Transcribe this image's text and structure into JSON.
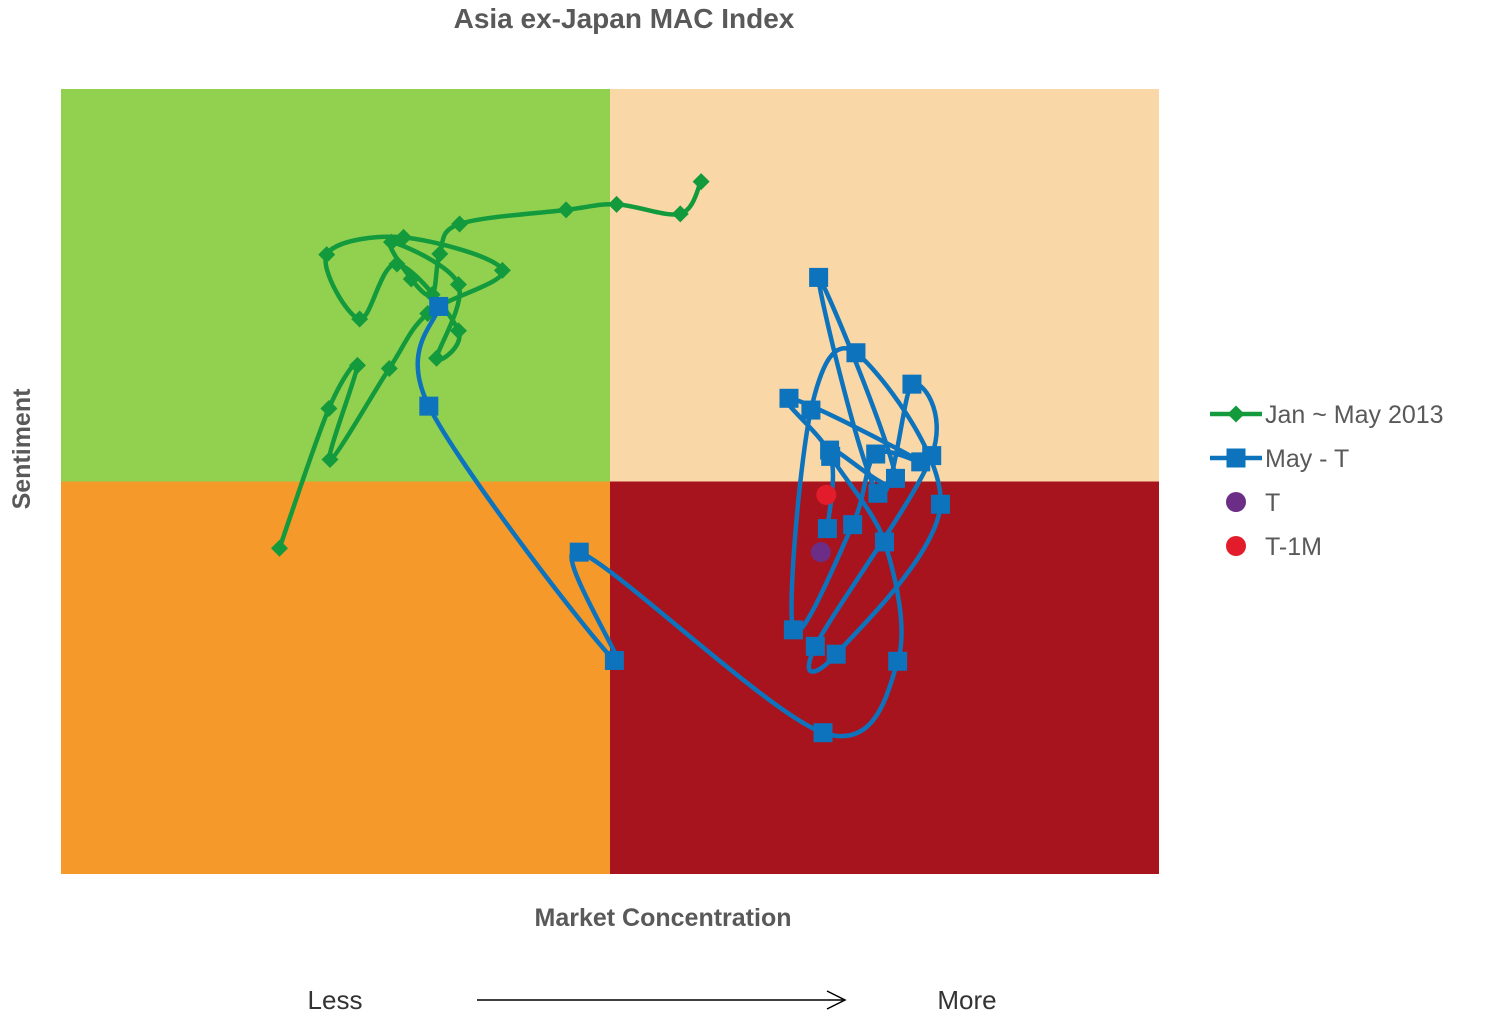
{
  "chart_data": {
    "type": "scatter",
    "title": "Asia ex-Japan MAC Index",
    "xlabel": "Market Concentration",
    "ylabel": "Sentiment",
    "xlim": [
      0,
      100
    ],
    "ylim": [
      0,
      100
    ],
    "grid": false,
    "quadrant_split": {
      "x": 50,
      "y": 50
    },
    "quadrant_colors": {
      "top_left": "#92d050",
      "top_right": "#fad7a6",
      "bottom_left": "#f59a2a",
      "bottom_right": "#a8141d"
    },
    "legend_position": "right",
    "direction_axis": {
      "left_label": "Less",
      "right_label": "More"
    },
    "series": [
      {
        "name": "Jan ~ May 2013",
        "color": "#129a3d",
        "marker": "diamond",
        "smooth": true,
        "points": [
          [
            58.3,
            88.2
          ],
          [
            56.4,
            84.1
          ],
          [
            50.6,
            85.3
          ],
          [
            46.0,
            84.6
          ],
          [
            36.3,
            82.8
          ],
          [
            34.5,
            79.0
          ],
          [
            33.8,
            73.8
          ],
          [
            31.9,
            75.8
          ],
          [
            30.1,
            80.5
          ],
          [
            36.2,
            75.1
          ],
          [
            34.2,
            65.7
          ],
          [
            36.2,
            69.2
          ],
          [
            30.6,
            77.7
          ],
          [
            27.2,
            70.7
          ],
          [
            24.2,
            78.9
          ],
          [
            31.2,
            81.1
          ],
          [
            40.2,
            76.9
          ],
          [
            33.4,
            71.4
          ],
          [
            29.9,
            64.4
          ],
          [
            24.5,
            52.8
          ],
          [
            27.0,
            64.8
          ],
          [
            24.4,
            59.3
          ],
          [
            19.9,
            41.5
          ]
        ]
      },
      {
        "name": "May - T",
        "color": "#0d73bd",
        "marker": "square",
        "smooth": true,
        "points": [
          [
            34.4,
            72.3
          ],
          [
            33.5,
            59.6
          ],
          [
            50.4,
            27.2
          ],
          [
            47.2,
            41.0
          ],
          [
            69.4,
            18.0
          ],
          [
            76.2,
            27.1
          ],
          [
            75.0,
            42.3
          ],
          [
            70.0,
            54.0
          ],
          [
            76.0,
            50.4
          ],
          [
            69.0,
            76.0
          ],
          [
            74.4,
            48.5
          ],
          [
            77.5,
            62.4
          ],
          [
            79.3,
            53.3
          ],
          [
            68.7,
            29.0
          ],
          [
            70.6,
            28.0
          ],
          [
            80.1,
            47.1
          ],
          [
            72.4,
            66.4
          ],
          [
            68.3,
            59.1
          ],
          [
            66.7,
            31.1
          ],
          [
            72.1,
            44.5
          ],
          [
            74.2,
            53.5
          ],
          [
            78.3,
            52.5
          ],
          [
            66.3,
            60.6
          ],
          [
            70.1,
            53.2
          ],
          [
            69.8,
            44.0
          ]
        ]
      },
      {
        "name": "T",
        "color": "#6c2d86",
        "marker": "circle",
        "points": [
          [
            69.2,
            41.0
          ]
        ]
      },
      {
        "name": "T-1M",
        "color": "#e21c2a",
        "marker": "circle",
        "points": [
          [
            69.7,
            48.3
          ]
        ]
      }
    ]
  }
}
